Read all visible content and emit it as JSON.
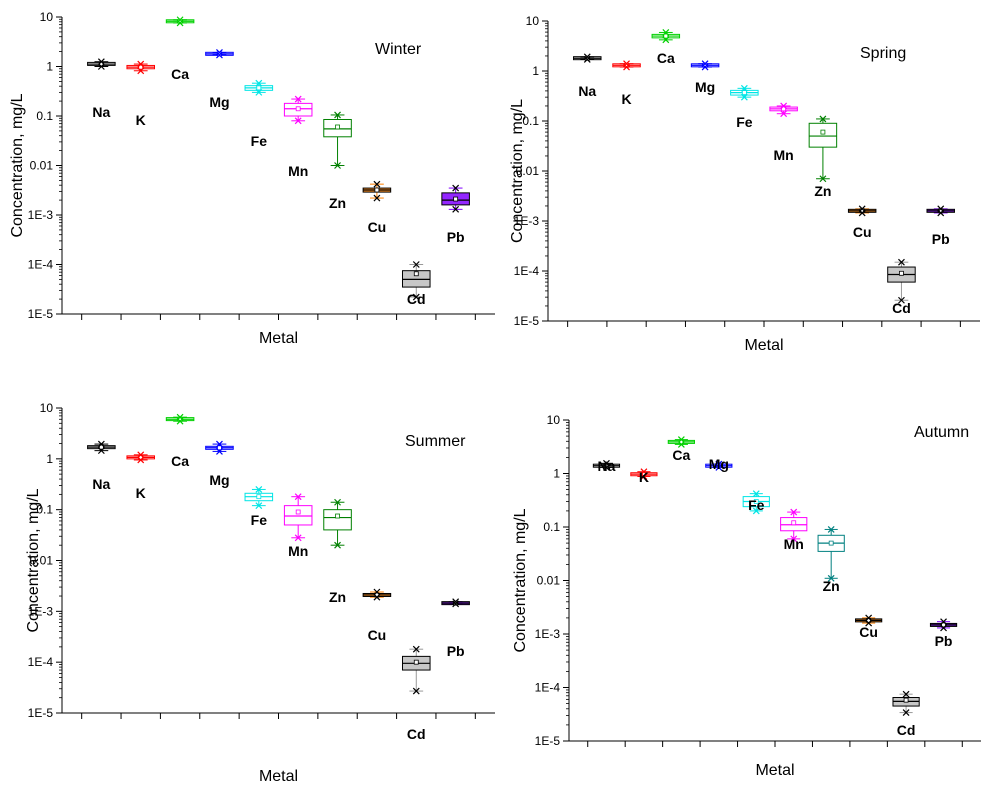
{
  "chart_data": [
    {
      "type": "box",
      "title": "Winter",
      "xlabel": "Metal",
      "ylabel": "Concentration, mg/L",
      "yscale": "log",
      "ylim": [
        1e-05,
        10
      ],
      "yticks": [
        "1E-5",
        "1E-4",
        "1E-3",
        "0.01",
        "0.1",
        "1",
        "10"
      ],
      "series": [
        {
          "label": "Na",
          "color": "#000000",
          "q1": 1.08,
          "median": 1.12,
          "q3": 1.18,
          "mean": 1.12,
          "min": 1.0,
          "max": 1.25
        },
        {
          "label": "K",
          "color": "#ff0000",
          "q1": 0.9,
          "median": 0.97,
          "q3": 1.05,
          "mean": 0.97,
          "min": 0.82,
          "max": 1.12
        },
        {
          "label": "Ca",
          "color": "#00d000",
          "q1": 7.9,
          "median": 8.2,
          "q3": 8.5,
          "mean": 8.2,
          "min": 7.6,
          "max": 8.8
        },
        {
          "label": "Mg",
          "color": "#0000ff",
          "q1": 1.75,
          "median": 1.8,
          "q3": 1.86,
          "mean": 1.8,
          "min": 1.7,
          "max": 1.92
        },
        {
          "label": "Fe",
          "color": "#00e5e5",
          "q1": 0.33,
          "median": 0.37,
          "q3": 0.41,
          "mean": 0.37,
          "min": 0.3,
          "max": 0.46
        },
        {
          "label": "Mn",
          "color": "#ff00ff",
          "q1": 0.1,
          "median": 0.14,
          "q3": 0.18,
          "mean": 0.14,
          "min": 0.08,
          "max": 0.22
        },
        {
          "label": "Zn",
          "color": "#008000",
          "q1": 0.038,
          "median": 0.055,
          "q3": 0.085,
          "mean": 0.06,
          "min": 0.01,
          "max": 0.105
        },
        {
          "label": "Cu",
          "color": "#ff8000",
          "q1": 0.0029,
          "median": 0.0032,
          "q3": 0.0035,
          "mean": 0.0032,
          "min": 0.0022,
          "max": 0.0042
        },
        {
          "label": "Cd",
          "color": "#999999",
          "q1": 3.5e-05,
          "median": 5e-05,
          "q3": 7.5e-05,
          "mean": 6.5e-05,
          "min": 2.2e-05,
          "max": 0.0001
        },
        {
          "label": "Pb",
          "color": "#8000ff",
          "q1": 0.0016,
          "median": 0.002,
          "q3": 0.0028,
          "mean": 0.0021,
          "min": 0.0013,
          "max": 0.0035
        }
      ]
    },
    {
      "type": "box",
      "title": "Spring",
      "xlabel": "Metal",
      "ylabel": "Concentration, mg/L",
      "yscale": "log",
      "ylim": [
        1e-05,
        10
      ],
      "yticks": [
        "1E-5",
        "1E-4",
        "1E-3",
        "0.01",
        "0.1",
        "1",
        "10"
      ],
      "series": [
        {
          "label": "Na",
          "color": "#000000",
          "q1": 1.75,
          "median": 1.8,
          "q3": 1.86,
          "mean": 1.8,
          "min": 1.7,
          "max": 1.92
        },
        {
          "label": "K",
          "color": "#ff0000",
          "q1": 1.25,
          "median": 1.3,
          "q3": 1.35,
          "mean": 1.3,
          "min": 1.2,
          "max": 1.4
        },
        {
          "label": "Ca",
          "color": "#00d000",
          "q1": 4.6,
          "median": 5.0,
          "q3": 5.4,
          "mean": 5.0,
          "min": 4.2,
          "max": 5.9
        },
        {
          "label": "Mg",
          "color": "#0000ff",
          "q1": 1.25,
          "median": 1.3,
          "q3": 1.35,
          "mean": 1.3,
          "min": 1.2,
          "max": 1.4
        },
        {
          "label": "Fe",
          "color": "#00e5e5",
          "q1": 0.33,
          "median": 0.37,
          "q3": 0.41,
          "mean": 0.37,
          "min": 0.3,
          "max": 0.45
        },
        {
          "label": "Mn",
          "color": "#ff00ff",
          "q1": 0.16,
          "median": 0.175,
          "q3": 0.19,
          "mean": 0.175,
          "min": 0.14,
          "max": 0.2
        },
        {
          "label": "Zn",
          "color": "#008000",
          "q1": 0.03,
          "median": 0.05,
          "q3": 0.09,
          "mean": 0.06,
          "min": 0.007,
          "max": 0.11
        },
        {
          "label": "Cu",
          "color": "#ff8000",
          "q1": 0.00152,
          "median": 0.0016,
          "q3": 0.00168,
          "mean": 0.0016,
          "min": 0.00145,
          "max": 0.00175
        },
        {
          "label": "Cd",
          "color": "#999999",
          "q1": 6e-05,
          "median": 8.5e-05,
          "q3": 0.00012,
          "mean": 9e-05,
          "min": 2.6e-05,
          "max": 0.00015
        },
        {
          "label": "Pb",
          "color": "#8000ff",
          "q1": 0.00152,
          "median": 0.0016,
          "q3": 0.00168,
          "mean": 0.0016,
          "min": 0.00145,
          "max": 0.00175
        }
      ]
    },
    {
      "type": "box",
      "title": "Summer",
      "xlabel": "Metal",
      "ylabel": "Concentration, mg/L",
      "yscale": "log",
      "ylim": [
        1e-05,
        10
      ],
      "yticks": [
        "1E-5",
        "1E-4",
        "1E-3",
        "0.01",
        "0.1",
        "1",
        "10"
      ],
      "series": [
        {
          "label": "Na",
          "color": "#000000",
          "q1": 1.6,
          "median": 1.7,
          "q3": 1.8,
          "mean": 1.7,
          "min": 1.45,
          "max": 1.95
        },
        {
          "label": "K",
          "color": "#ff0000",
          "q1": 1.02,
          "median": 1.07,
          "q3": 1.12,
          "mean": 1.07,
          "min": 0.95,
          "max": 1.2
        },
        {
          "label": "Ca",
          "color": "#00d000",
          "q1": 5.8,
          "median": 6.0,
          "q3": 6.3,
          "mean": 6.0,
          "min": 5.5,
          "max": 6.6
        },
        {
          "label": "Mg",
          "color": "#0000ff",
          "q1": 1.55,
          "median": 1.65,
          "q3": 1.75,
          "mean": 1.65,
          "min": 1.4,
          "max": 1.95
        },
        {
          "label": "Fe",
          "color": "#00e5e5",
          "q1": 0.15,
          "median": 0.18,
          "q3": 0.21,
          "mean": 0.18,
          "min": 0.12,
          "max": 0.25
        },
        {
          "label": "Mn",
          "color": "#ff00ff",
          "q1": 0.05,
          "median": 0.075,
          "q3": 0.12,
          "mean": 0.09,
          "min": 0.028,
          "max": 0.18
        },
        {
          "label": "Zn",
          "color": "#008000",
          "q1": 0.04,
          "median": 0.07,
          "q3": 0.1,
          "mean": 0.075,
          "min": 0.02,
          "max": 0.14
        },
        {
          "label": "Cu",
          "color": "#ff8000",
          "q1": 0.002,
          "median": 0.0021,
          "q3": 0.0022,
          "mean": 0.0021,
          "min": 0.0019,
          "max": 0.0024
        },
        {
          "label": "Cd",
          "color": "#999999",
          "q1": 7e-05,
          "median": 9.5e-05,
          "q3": 0.00013,
          "mean": 0.0001,
          "min": 2.7e-05,
          "max": 0.00018
        },
        {
          "label": "Pb",
          "color": "#8000ff",
          "q1": 0.00142,
          "median": 0.00145,
          "q3": 0.00148,
          "mean": 0.00145,
          "min": 0.0014,
          "max": 0.00155
        }
      ]
    },
    {
      "type": "box",
      "title": "Autumn",
      "xlabel": "Metal",
      "ylabel": "Concentration, mg/L",
      "yscale": "log",
      "ylim": [
        1e-05,
        10
      ],
      "yticks": [
        "1E-5",
        "1E-4",
        "1E-3",
        "0.01",
        "0.1",
        "1",
        "10"
      ],
      "series": [
        {
          "label": "Na",
          "color": "#000000",
          "q1": 1.35,
          "median": 1.4,
          "q3": 1.45,
          "mean": 1.4,
          "min": 1.3,
          "max": 1.55
        },
        {
          "label": "K",
          "color": "#ff0000",
          "q1": 0.92,
          "median": 0.97,
          "q3": 1.02,
          "mean": 0.97,
          "min": 0.88,
          "max": 1.08
        },
        {
          "label": "Ca",
          "color": "#00d000",
          "q1": 3.7,
          "median": 3.9,
          "q3": 4.1,
          "mean": 3.9,
          "min": 3.5,
          "max": 4.3
        },
        {
          "label": "Mg",
          "color": "#0000ff",
          "q1": 1.35,
          "median": 1.4,
          "q3": 1.45,
          "mean": 1.4,
          "min": 1.3,
          "max": 1.5
        },
        {
          "label": "Fe",
          "color": "#00e5e5",
          "q1": 0.24,
          "median": 0.3,
          "q3": 0.37,
          "mean": 0.3,
          "min": 0.2,
          "max": 0.42
        },
        {
          "label": "Mn",
          "color": "#ff00ff",
          "q1": 0.085,
          "median": 0.11,
          "q3": 0.15,
          "mean": 0.12,
          "min": 0.06,
          "max": 0.19
        },
        {
          "label": "Zn",
          "color": "#008080",
          "q1": 0.035,
          "median": 0.05,
          "q3": 0.07,
          "mean": 0.05,
          "min": 0.011,
          "max": 0.09
        },
        {
          "label": "Cu",
          "color": "#ff8000",
          "q1": 0.0017,
          "median": 0.0018,
          "q3": 0.0019,
          "mean": 0.0018,
          "min": 0.0016,
          "max": 0.002
        },
        {
          "label": "Cd",
          "color": "#999999",
          "q1": 4.5e-05,
          "median": 5.5e-05,
          "q3": 6.5e-05,
          "mean": 5.8e-05,
          "min": 3.4e-05,
          "max": 7.5e-05
        },
        {
          "label": "Pb",
          "color": "#8000ff",
          "q1": 0.0014,
          "median": 0.00148,
          "q3": 0.00156,
          "mean": 0.00148,
          "min": 0.0013,
          "max": 0.0017
        }
      ]
    }
  ]
}
